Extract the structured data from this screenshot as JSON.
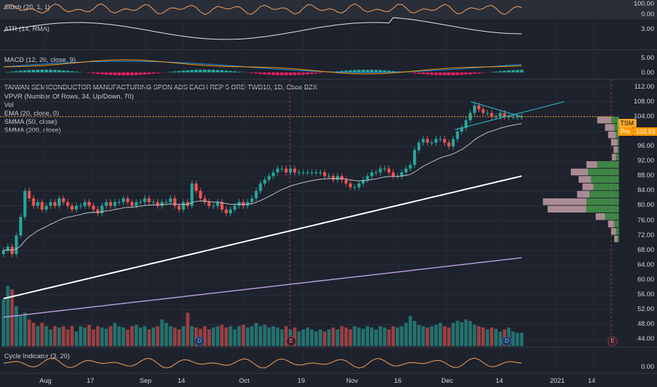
{
  "colors": {
    "background": "#1e222d",
    "up": "#26a69a",
    "down": "#ef5350",
    "ema": "#c0c2c8",
    "smma50": "#ffffff",
    "smma200": "#b39ddb",
    "stoch": "#f5a45b",
    "atr": "#e8e8e8",
    "macd": "#2196f3",
    "signal": "#ff9800",
    "cycle": "#f5a45b",
    "vpvr_up": "#4caf50",
    "vpvr_down": "#e6b8c0",
    "price_line": "#ffa726",
    "triangle": "#26c6da"
  },
  "panes": {
    "stoch": {
      "label": "Stoch (20, 1, 1)",
      "ticks": [
        "100.00",
        "0.00"
      ]
    },
    "atr": {
      "label": "ATR (14, RMA)",
      "ticks": [
        "3.00"
      ]
    },
    "macd": {
      "label": "MACD (12, 26, close, 9)",
      "ticks": [
        "5.00",
        "0.00"
      ]
    },
    "main": {
      "title": "TAIWAN SEMICONDUCTOR MANUFACTURING SPON ADS EACH REP 5 ORD TWD10, 1D, Cboe BZX",
      "indicators": [
        "VPVR (Number Of Rows, 34, Up/Down, 70)",
        "Vol",
        "EMA (20, close, 0)",
        "SMMA (50, close)",
        "SMMA (200, close)"
      ],
      "ticks": [
        "112.00",
        "108.00",
        "104.00",
        "100.00",
        "96.00",
        "92.00",
        "88.00",
        "84.00",
        "80.00",
        "76.00",
        "72.00",
        "68.00",
        "64.00",
        "60.00",
        "56.00",
        "52.00",
        "48.00",
        "44.00"
      ],
      "symbol_badge": "TSM",
      "pre_label": "Pre",
      "pre_price": "103.93"
    },
    "cycle": {
      "label": "Cycle Indicator (3, 20)",
      "ticks": [
        "0.00"
      ]
    }
  },
  "x_axis": [
    "Aug",
    "17",
    "Sep",
    "14",
    "Oct",
    "19",
    "Nov",
    "16",
    "Dec",
    "14",
    "2021",
    "14"
  ],
  "events": [
    "D",
    "E",
    "D",
    "E"
  ],
  "chart_data": {
    "type": "candlestick",
    "title": "TAIWAN SEMICONDUCTOR MANUFACTURING SPON ADS EACH REP 5 ORD TWD10, 1D, Cboe BZX",
    "y_axis_range": [
      42,
      114
    ],
    "x_labels": [
      "Aug",
      "17",
      "Sep",
      "14",
      "Oct",
      "19",
      "Nov",
      "16",
      "Dec",
      "14",
      "2021",
      "14"
    ],
    "close": [
      68,
      69,
      67,
      72,
      77,
      84,
      82,
      80,
      81,
      79,
      80,
      81,
      80,
      82,
      81,
      80,
      79,
      80,
      80,
      81,
      80,
      79,
      78,
      80,
      81,
      80,
      81,
      81,
      82,
      81,
      80,
      81,
      81,
      82,
      81,
      81,
      80,
      81,
      81,
      82,
      80,
      79,
      81,
      80,
      86,
      84,
      82,
      81,
      80,
      80,
      81,
      79,
      78,
      79,
      80,
      81,
      80,
      81,
      82,
      84,
      86,
      87,
      88,
      89,
      90,
      90,
      89,
      90,
      89,
      89,
      89,
      89,
      89,
      89,
      89,
      88,
      88,
      87,
      88,
      87,
      86,
      85,
      85,
      86,
      87,
      88,
      89,
      89,
      90,
      90,
      89,
      88,
      88,
      89,
      90,
      91,
      95,
      97,
      98,
      97,
      97,
      98,
      98,
      97,
      96,
      98,
      100,
      101,
      103,
      105,
      107,
      106,
      105,
      105,
      104,
      104,
      105,
      104,
      104,
      104,
      104,
      104
    ],
    "vpvr_range": [
      70,
      104
    ],
    "vpvr_rows": [
      {
        "price": 103,
        "up": 0.1,
        "down": 0.18
      },
      {
        "price": 101,
        "up": 0.06,
        "down": 0.12
      },
      {
        "price": 99,
        "up": 0.04,
        "down": 0.1
      },
      {
        "price": 97,
        "up": 0.02,
        "down": 0.08
      },
      {
        "price": 95,
        "up": 0.02,
        "down": 0.05
      },
      {
        "price": 93,
        "up": 0.04,
        "down": 0.05
      },
      {
        "price": 91,
        "up": 0.28,
        "down": 0.14
      },
      {
        "price": 89,
        "up": 0.4,
        "down": 0.22
      },
      {
        "price": 87,
        "up": 0.36,
        "down": 0.16
      },
      {
        "price": 85,
        "up": 0.33,
        "down": 0.14
      },
      {
        "price": 83,
        "up": 0.38,
        "down": 0.16
      },
      {
        "price": 81,
        "up": 0.42,
        "down": 0.56
      },
      {
        "price": 79,
        "up": 0.42,
        "down": 0.5
      },
      {
        "price": 77,
        "up": 0.18,
        "down": 0.12
      },
      {
        "price": 75,
        "up": 0.06,
        "down": 0.08
      },
      {
        "price": 73,
        "up": 0.04,
        "down": 0.06
      },
      {
        "price": 71,
        "up": 0.02,
        "down": 0.04
      }
    ],
    "volume": [
      0.7,
      0.9,
      0.85,
      0.6,
      0.45,
      0.5,
      0.4,
      0.35,
      0.3,
      0.35,
      0.3,
      0.25,
      0.3,
      0.28,
      0.3,
      0.25,
      0.3,
      0.22,
      0.3,
      0.28,
      0.32,
      0.25,
      0.3,
      0.28,
      0.26,
      0.3,
      0.35,
      0.3,
      0.28,
      0.25,
      0.3,
      0.32,
      0.28,
      0.3,
      0.25,
      0.28,
      0.3,
      0.4,
      0.35,
      0.3,
      0.28,
      0.25,
      0.3,
      0.5,
      0.3,
      0.28,
      0.26,
      0.3,
      0.25,
      0.28,
      0.3,
      0.32,
      0.28,
      0.3,
      0.25,
      0.3,
      0.32,
      0.28,
      0.3,
      0.35,
      0.3,
      0.32,
      0.28,
      0.3,
      0.28,
      0.25,
      0.3,
      0.25,
      0.28,
      0.22,
      0.25,
      0.28,
      0.25,
      0.22,
      0.25,
      0.22,
      0.25,
      0.28,
      0.25,
      0.3,
      0.28,
      0.25,
      0.3,
      0.28,
      0.26,
      0.3,
      0.28,
      0.25,
      0.3,
      0.28,
      0.25,
      0.3,
      0.28,
      0.3,
      0.35,
      0.45,
      0.38,
      0.32,
      0.3,
      0.28,
      0.3,
      0.32,
      0.35,
      0.3,
      0.28,
      0.35,
      0.38,
      0.36,
      0.4,
      0.38,
      0.32,
      0.3,
      0.28,
      0.25,
      0.28,
      0.26,
      0.22,
      0.25,
      0.28,
      0.22,
      0.2,
      0.2
    ]
  }
}
